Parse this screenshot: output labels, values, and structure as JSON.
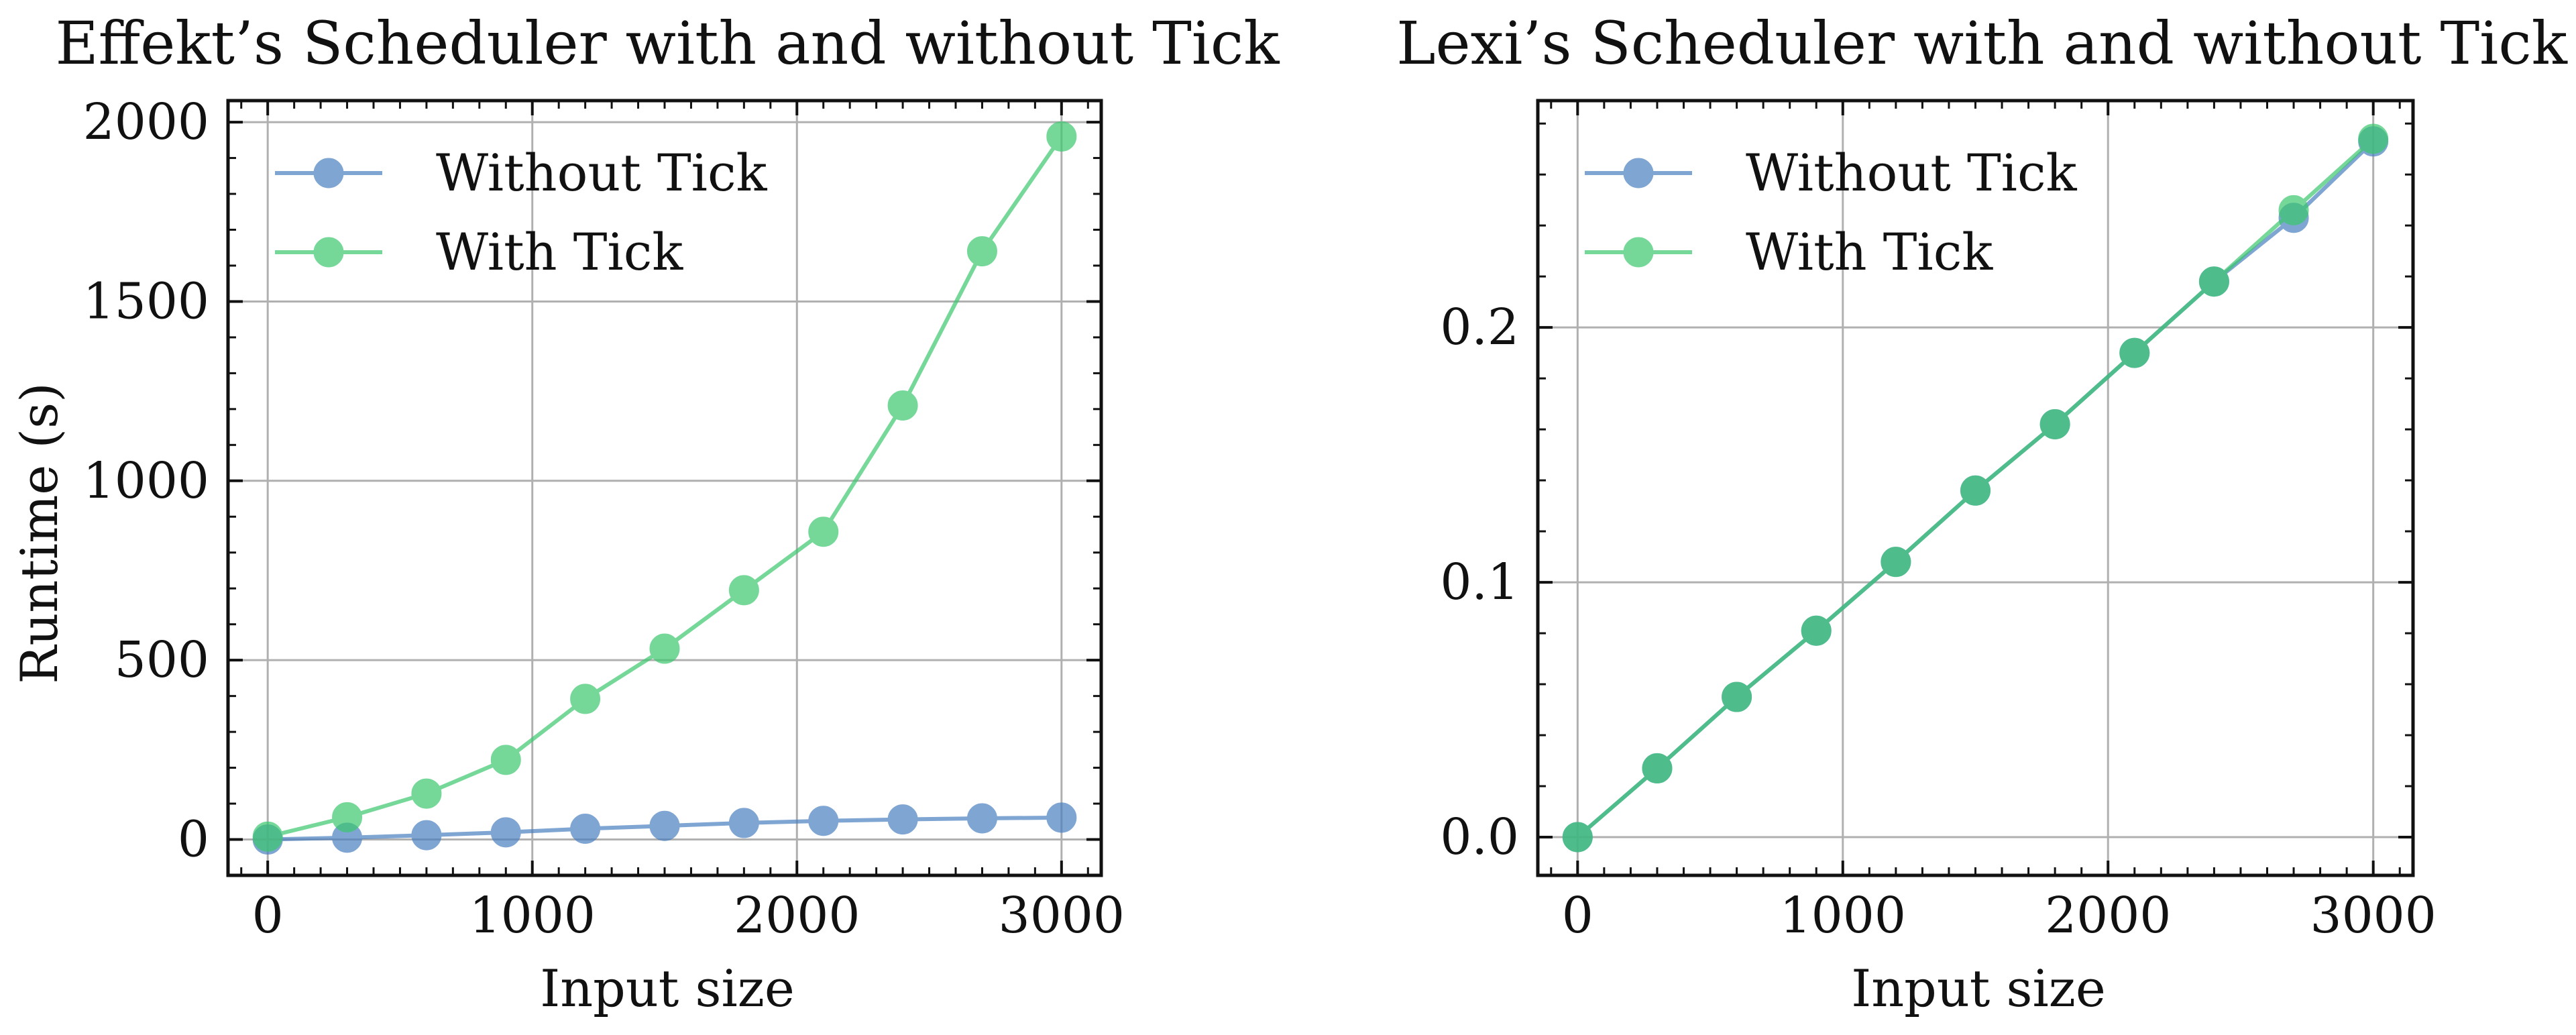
{
  "chart_data": [
    {
      "type": "line",
      "title": "Effekt’s Scheduler with and without Tick",
      "xlabel": "Input size",
      "ylabel": "Runtime (s)",
      "xlim": [
        -150,
        3150
      ],
      "ylim": [
        -100,
        2060
      ],
      "xticks": [
        0,
        1000,
        2000,
        3000
      ],
      "yticks": [
        0,
        500,
        1000,
        1500,
        2000
      ],
      "xtick_labels": [
        "0",
        "1000",
        "2000",
        "3000"
      ],
      "ytick_labels": [
        "0",
        "500",
        "1000",
        "1500",
        "2000"
      ],
      "grid": true,
      "legend_position": "top-left",
      "x": [
        0,
        300,
        600,
        900,
        1200,
        1500,
        1800,
        2100,
        2400,
        2700,
        3000
      ],
      "series": [
        {
          "name": "Without Tick",
          "color": "#4a7fc0",
          "values": [
            0,
            5,
            12,
            20,
            30,
            38,
            46,
            52,
            56,
            59,
            61
          ]
        },
        {
          "name": "With Tick",
          "color": "#3cc86e",
          "values": [
            8,
            62,
            128,
            222,
            392,
            532,
            695,
            858,
            1210,
            1640,
            1960
          ]
        }
      ]
    },
    {
      "type": "line",
      "title": "Lexi’s Scheduler with and without Tick",
      "xlabel": "Input size",
      "ylabel": "",
      "xlim": [
        -150,
        3150
      ],
      "ylim": [
        -0.015,
        0.289
      ],
      "xticks": [
        0,
        1000,
        2000,
        3000
      ],
      "yticks": [
        0.0,
        0.1,
        0.2
      ],
      "xtick_labels": [
        "0",
        "1000",
        "2000",
        "3000"
      ],
      "ytick_labels": [
        "0.0",
        "0.1",
        "0.2"
      ],
      "grid": true,
      "legend_position": "top-left",
      "x": [
        0,
        300,
        600,
        900,
        1200,
        1500,
        1800,
        2100,
        2400,
        2700,
        3000
      ],
      "series": [
        {
          "name": "Without Tick",
          "color": "#4a7fc0",
          "values": [
            0.0,
            0.027,
            0.055,
            0.081,
            0.108,
            0.136,
            0.162,
            0.19,
            0.218,
            0.243,
            0.273
          ]
        },
        {
          "name": "With Tick",
          "color": "#3cc86e",
          "values": [
            0.0,
            0.027,
            0.055,
            0.081,
            0.108,
            0.136,
            0.162,
            0.19,
            0.218,
            0.246,
            0.274
          ]
        }
      ]
    }
  ]
}
